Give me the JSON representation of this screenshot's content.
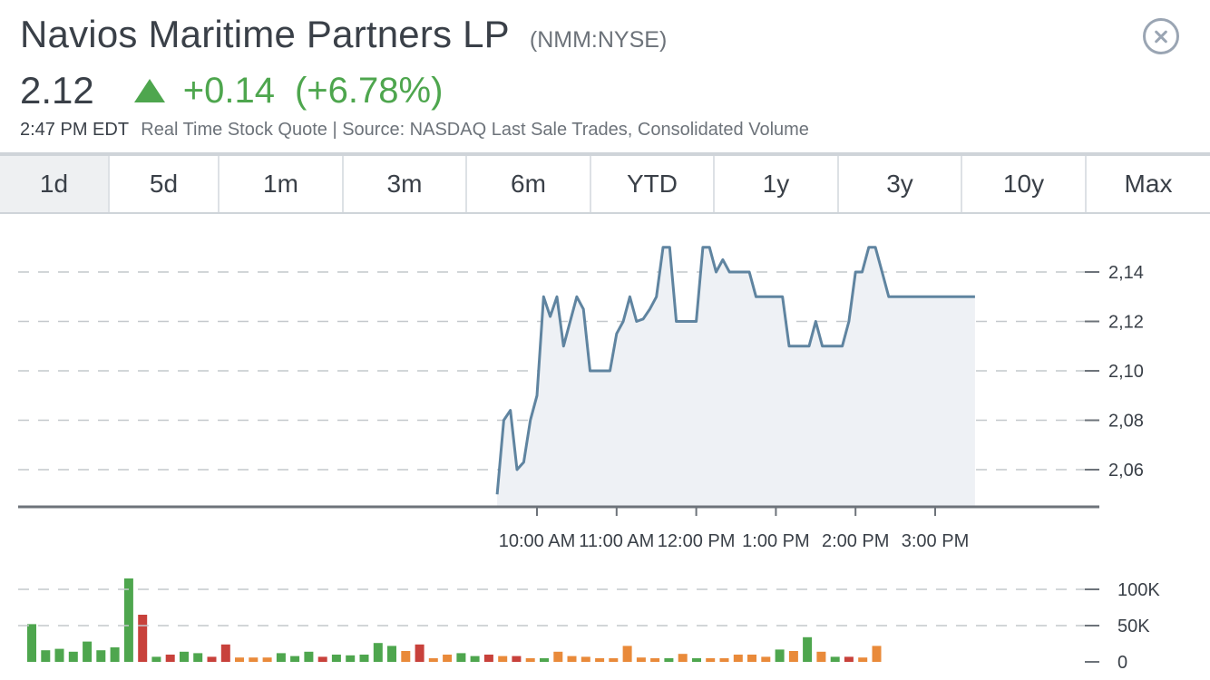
{
  "header": {
    "company": "Navios Maritime Partners LP",
    "ticker": "(NMM:NYSE)",
    "price": "2.12",
    "change": "+0.14",
    "change_pct": "(+6.78%)",
    "time": "2:47 PM EDT",
    "source": "Real Time Stock Quote | Source: NASDAQ Last Sale Trades, Consolidated Volume"
  },
  "colors": {
    "up": "#4ea64e",
    "down": "#c8413b",
    "neutral": "#e98a3a",
    "line": "#5f84a0",
    "fill": "#eef1f5",
    "grid": "#c4c8cc"
  },
  "tabs": [
    {
      "label": "1d",
      "active": true
    },
    {
      "label": "5d"
    },
    {
      "label": "1m"
    },
    {
      "label": "3m"
    },
    {
      "label": "6m"
    },
    {
      "label": "YTD"
    },
    {
      "label": "1y"
    },
    {
      "label": "3y"
    },
    {
      "label": "10y"
    },
    {
      "label": "Max"
    }
  ],
  "chart_data": [
    {
      "type": "line",
      "series_type": "area",
      "x_unit": "minutes since midnight",
      "x_ticks": [
        "10:00 AM",
        "11:00 AM",
        "12:00 PM",
        "1:00 PM",
        "2:00 PM",
        "3:00 PM"
      ],
      "y_ticks": [
        "2,06",
        "2,08",
        "2,10",
        "2,12",
        "2,14"
      ],
      "ylim": [
        2.04,
        2.16
      ],
      "xlim": [
        565,
        955
      ],
      "grid": true,
      "x": [
        570,
        575,
        580,
        585,
        590,
        595,
        600,
        605,
        610,
        615,
        620,
        625,
        630,
        635,
        640,
        645,
        650,
        655,
        660,
        665,
        670,
        675,
        680,
        685,
        690,
        695,
        700,
        705,
        710,
        715,
        720,
        725,
        730,
        735,
        740,
        745,
        750,
        755,
        760,
        765,
        770,
        775,
        780,
        785,
        790,
        795,
        800,
        805,
        810,
        815,
        820,
        825,
        830,
        835,
        840,
        845,
        850,
        855,
        860,
        865,
        870,
        875,
        880,
        885,
        890,
        895,
        900,
        905,
        910,
        915,
        920,
        925,
        930
      ],
      "values": [
        2.05,
        2.08,
        2.084,
        2.06,
        2.063,
        2.08,
        2.09,
        2.13,
        2.122,
        2.13,
        2.11,
        2.12,
        2.13,
        2.125,
        2.1,
        2.1,
        2.1,
        2.1,
        2.115,
        2.12,
        2.13,
        2.12,
        2.121,
        2.125,
        2.13,
        2.15,
        2.15,
        2.12,
        2.12,
        2.12,
        2.12,
        2.15,
        2.15,
        2.14,
        2.145,
        2.14,
        2.14,
        2.14,
        2.14,
        2.13,
        2.13,
        2.13,
        2.13,
        2.13,
        2.11,
        2.11,
        2.11,
        2.11,
        2.12,
        2.11,
        2.11,
        2.11,
        2.11,
        2.12,
        2.14,
        2.14,
        2.15,
        2.15,
        2.14,
        2.13,
        2.13,
        2.13,
        2.13,
        2.13,
        2.13,
        2.13,
        2.13,
        2.13,
        2.13,
        2.13,
        2.13,
        2.13,
        2.13
      ]
    },
    {
      "type": "bar",
      "y_ticks": [
        "100K",
        "50K",
        "0"
      ],
      "ylim": [
        0,
        100000
      ],
      "values": [
        52000,
        16000,
        18000,
        14000,
        28000,
        16000,
        20000,
        115000,
        65000,
        7000,
        10000,
        14000,
        12000,
        7000,
        24000,
        6000,
        6000,
        6000,
        12000,
        8000,
        14000,
        7000,
        10000,
        9000,
        10000,
        26000,
        22000,
        15000,
        24000,
        5000,
        10000,
        12000,
        8000,
        10000,
        8000,
        8000,
        5000,
        5000,
        14000,
        8000,
        7000,
        5000,
        5000,
        22000,
        6000,
        5000,
        5000,
        11000,
        5000,
        5000,
        5000,
        10000,
        10000,
        7000,
        17000,
        15000,
        34000,
        14000,
        7000,
        7000,
        6000,
        22000
      ],
      "directions": [
        "up",
        "up",
        "up",
        "up",
        "up",
        "up",
        "up",
        "up",
        "down",
        "up",
        "down",
        "up",
        "up",
        "down",
        "down",
        "neutral",
        "neutral",
        "neutral",
        "up",
        "up",
        "up",
        "down",
        "up",
        "up",
        "up",
        "up",
        "up",
        "neutral",
        "down",
        "neutral",
        "neutral",
        "up",
        "up",
        "down",
        "neutral",
        "down",
        "neutral",
        "up",
        "neutral",
        "neutral",
        "neutral",
        "neutral",
        "neutral",
        "neutral",
        "neutral",
        "neutral",
        "up",
        "neutral",
        "up",
        "neutral",
        "neutral",
        "neutral",
        "neutral",
        "neutral",
        "up",
        "neutral",
        "up",
        "neutral",
        "up",
        "down",
        "neutral",
        "neutral"
      ]
    }
  ]
}
